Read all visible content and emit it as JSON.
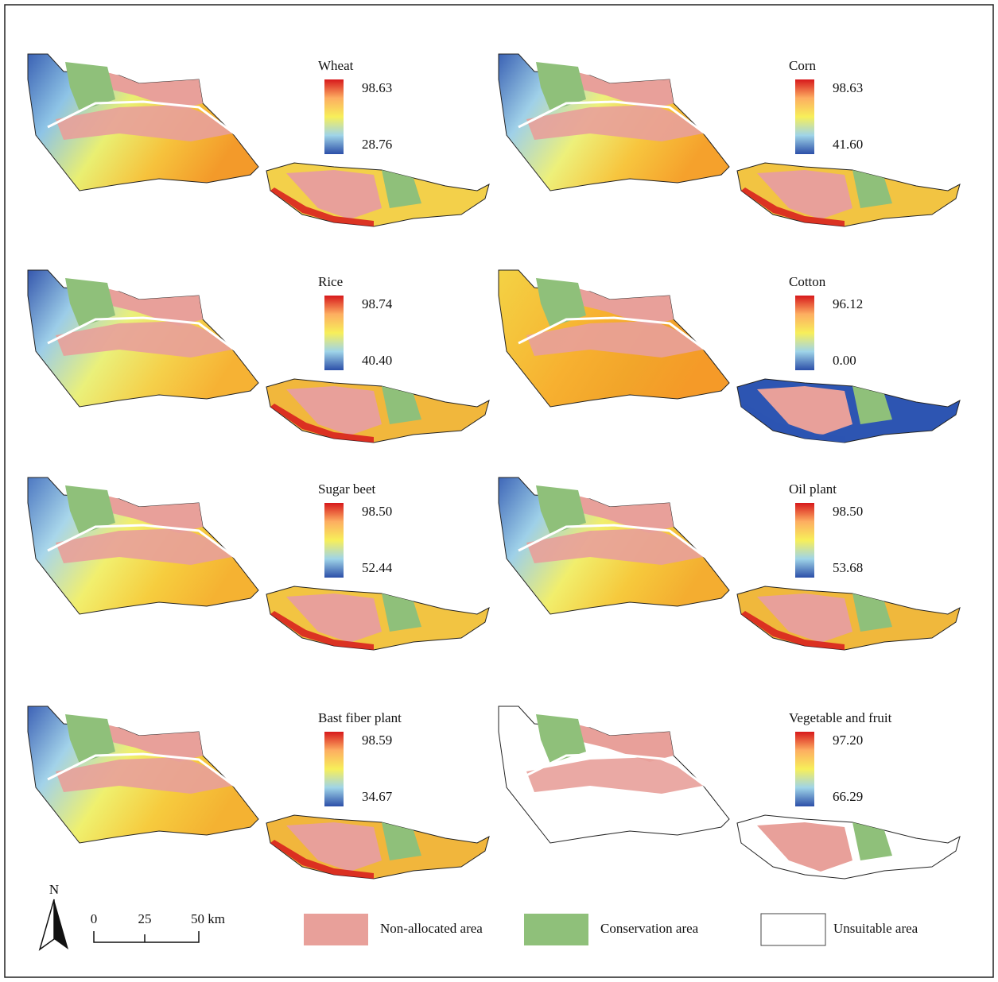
{
  "panels": [
    {
      "title": "Wheat",
      "legend_max": "98.63",
      "legend_min": "28.76"
    },
    {
      "title": "Corn",
      "legend_max": "98.63",
      "legend_min": "41.60"
    },
    {
      "title": "Rice",
      "legend_max": "98.74",
      "legend_min": "40.40"
    },
    {
      "title": "Cotton",
      "legend_max": "96.12",
      "legend_min": "0.00"
    },
    {
      "title": "Sugar beet",
      "legend_max": "98.50",
      "legend_min": "52.44"
    },
    {
      "title": "Oil plant",
      "legend_max": "98.50",
      "legend_min": "53.68"
    },
    {
      "title": "Bast fiber plant",
      "legend_max": "98.59",
      "legend_min": "34.67"
    },
    {
      "title": "Vegetable and fruit",
      "legend_max": "97.20",
      "legend_min": "66.29"
    }
  ],
  "north_label": "N",
  "scale_bar": {
    "labels": [
      "0",
      "25",
      "50 km"
    ]
  },
  "legend": {
    "items": [
      "Non-allocated area",
      "Conservation area",
      "Unsuitable area"
    ]
  }
}
